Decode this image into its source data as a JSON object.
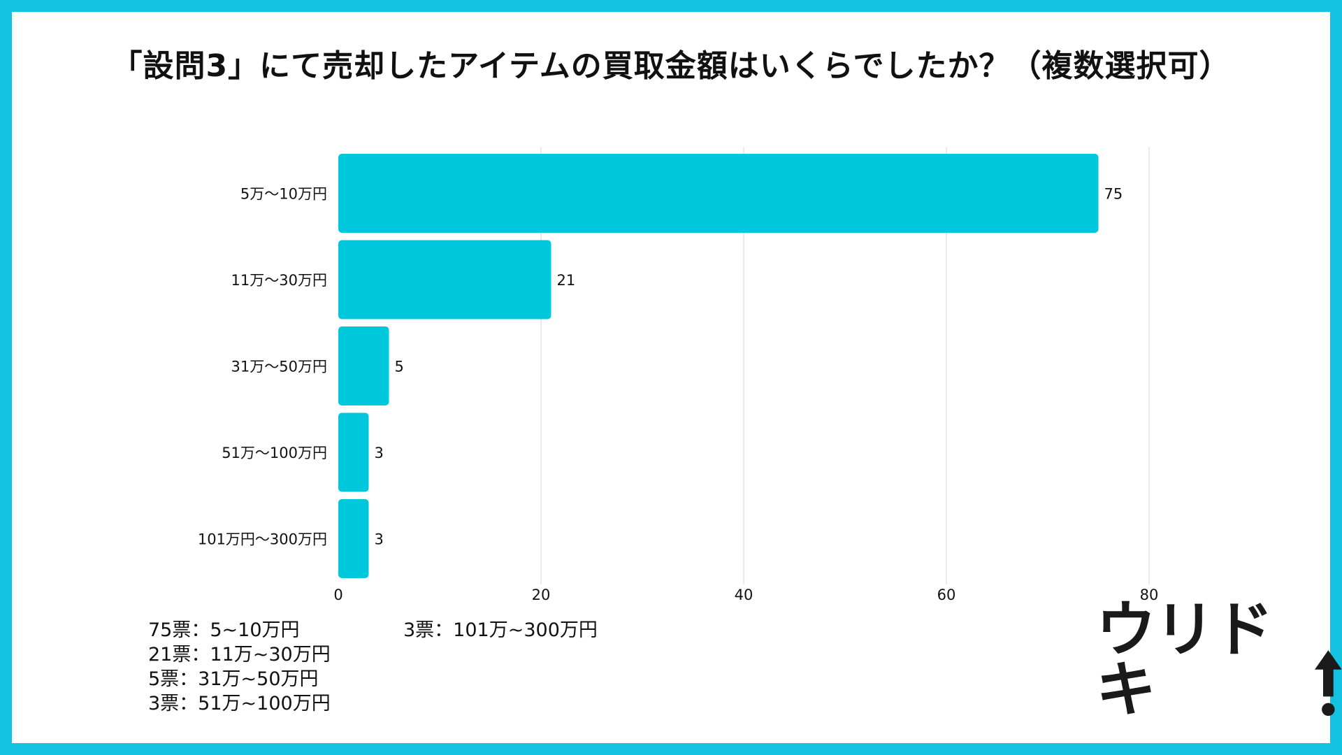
{
  "title": "「設問3」にて売却したアイテムの買取金額はいくらでしたか？（複数選択可）",
  "colors": {
    "frame": "#13c1e1",
    "bar": "#00c8dc",
    "grid": "#e3e3e3",
    "text": "#111111"
  },
  "chart_data": {
    "type": "bar",
    "orientation": "horizontal",
    "categories": [
      "5万〜10万円",
      "11万〜30万円",
      "31万〜50万円",
      "51万〜100万円",
      "101万円〜300万円"
    ],
    "values": [
      75,
      21,
      5,
      3,
      3
    ],
    "xlim": [
      0,
      80
    ],
    "xticks": [
      0,
      20,
      40,
      60,
      80
    ],
    "grid": true,
    "data_labels": true
  },
  "notes": {
    "left": [
      "75票：5~10万円",
      "21票：11万~30万円",
      "5票：31万~50万円",
      "3票：51万~100万円"
    ],
    "right": [
      "3票：101万~300万円"
    ]
  },
  "logo": {
    "text": "ウリドキ",
    "icon": "up-arrow-icon"
  }
}
